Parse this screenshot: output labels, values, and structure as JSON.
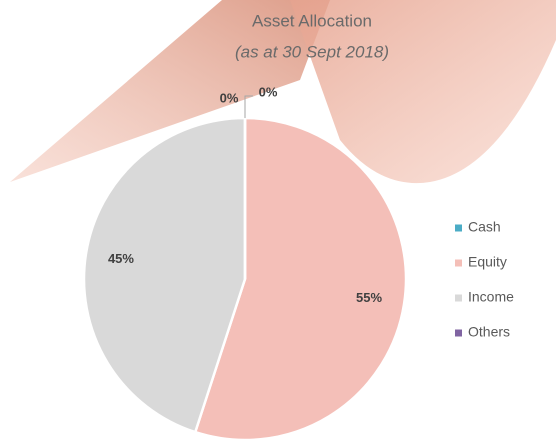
{
  "chart_data": {
    "type": "pie",
    "title": "Asset Allocation",
    "subtitle": "(as at 30 Sept 2018)",
    "categories": [
      "Cash",
      "Equity",
      "Income",
      "Others"
    ],
    "values": [
      0,
      55,
      45,
      0
    ],
    "value_labels": [
      "0%",
      "55%",
      "45%",
      "0%"
    ],
    "colors": [
      "#4bacc6",
      "#f4bfb8",
      "#d9d9d9",
      "#8064a2"
    ],
    "legend": "right"
  }
}
